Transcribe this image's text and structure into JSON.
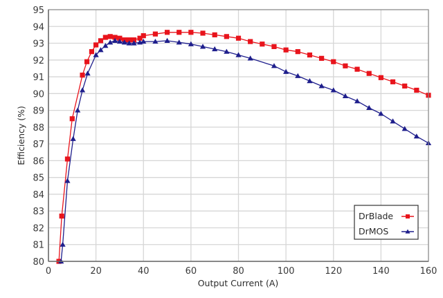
{
  "chart_data": {
    "type": "line",
    "title": "",
    "xlabel": "Output Current (A)",
    "ylabel": "Efficiency  (%)",
    "xlim": [
      0,
      160
    ],
    "ylim": [
      80,
      95
    ],
    "xticks": [
      0,
      20,
      40,
      60,
      80,
      100,
      120,
      140,
      160
    ],
    "yticks": [
      80,
      81,
      82,
      83,
      84,
      85,
      86,
      87,
      88,
      89,
      90,
      91,
      92,
      93,
      94,
      95
    ],
    "grid": true,
    "legend_position": "lower right",
    "series": [
      {
        "name": "DrBlade",
        "color": "#e8141c",
        "marker": "square",
        "x": [
          4.4,
          5.6,
          8,
          10,
          14.3,
          16.2,
          18.2,
          20,
          22,
          24,
          26,
          28,
          30,
          32,
          34,
          36,
          38.5,
          40,
          45,
          50,
          55,
          60,
          65,
          70,
          75,
          80,
          85,
          90,
          95,
          100,
          105,
          110,
          115,
          120,
          125,
          130,
          135,
          140,
          145,
          150,
          155,
          160
        ],
        "y": [
          80.0,
          82.7,
          86.1,
          88.5,
          91.1,
          91.9,
          92.5,
          92.9,
          93.15,
          93.35,
          93.4,
          93.35,
          93.3,
          93.2,
          93.2,
          93.2,
          93.3,
          93.45,
          93.55,
          93.65,
          93.65,
          93.65,
          93.6,
          93.5,
          93.4,
          93.3,
          93.1,
          92.95,
          92.8,
          92.6,
          92.5,
          92.3,
          92.1,
          91.9,
          91.65,
          91.45,
          91.2,
          90.95,
          90.7,
          90.45,
          90.2,
          89.9
        ]
      },
      {
        "name": "DrMOS",
        "color": "#1e1e8c",
        "marker": "triangle",
        "x": [
          5.3,
          6,
          8,
          10.4,
          12.3,
          14.3,
          16.5,
          20,
          22,
          24,
          26,
          28,
          30,
          32,
          34,
          36,
          38.5,
          40,
          45,
          50,
          55,
          60,
          65,
          70,
          75,
          80,
          85,
          95,
          100,
          105,
          110,
          115,
          120,
          125,
          130,
          135,
          140,
          145,
          150,
          155,
          160
        ],
        "y": [
          80.0,
          81.0,
          84.8,
          87.3,
          89.0,
          90.2,
          91.2,
          92.3,
          92.6,
          92.85,
          93.05,
          93.15,
          93.1,
          93.05,
          93.0,
          93.0,
          93.05,
          93.1,
          93.1,
          93.15,
          93.05,
          92.95,
          92.8,
          92.65,
          92.5,
          92.3,
          92.1,
          91.65,
          91.3,
          91.05,
          90.75,
          90.45,
          90.2,
          89.85,
          89.55,
          89.15,
          88.8,
          88.35,
          87.9,
          87.45,
          87.05
        ]
      }
    ]
  },
  "axes": {
    "xlabel": "Output Current (A)",
    "ylabel": "Efficiency  (%)"
  },
  "legend": {
    "items": [
      {
        "label": "DrBlade",
        "color": "#e8141c",
        "marker": "square"
      },
      {
        "label": "DrMOS",
        "color": "#1e1e8c",
        "marker": "triangle"
      }
    ]
  }
}
